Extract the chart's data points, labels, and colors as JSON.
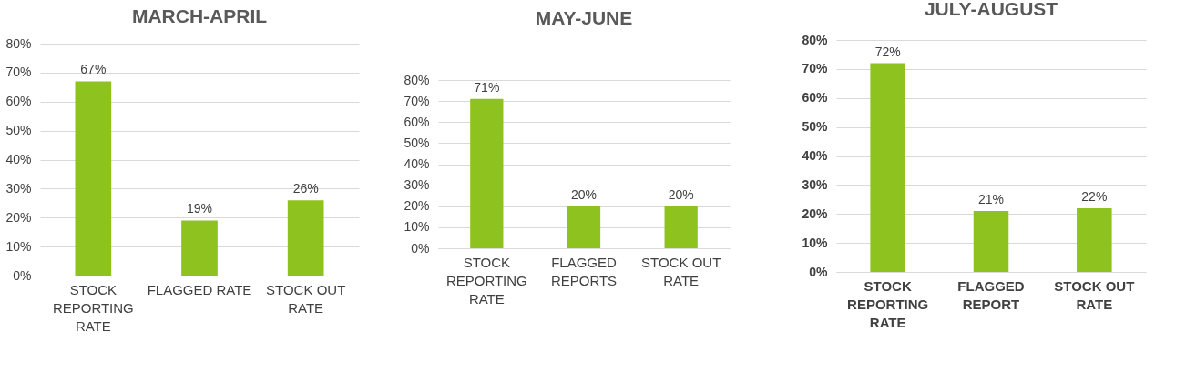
{
  "chart_data": [
    {
      "type": "bar",
      "title": "MARCH-APRIL",
      "categories": [
        "STOCK REPORTING RATE",
        "FLAGGED RATE",
        "STOCK OUT RATE"
      ],
      "values": [
        67,
        19,
        26
      ],
      "value_labels": [
        "67%",
        "19%",
        "26%"
      ],
      "color": "#8dc21f",
      "ylim": [
        0,
        80
      ],
      "yticks": [
        {
          "value": 0,
          "label": "0%"
        },
        {
          "value": 10,
          "label": "10%"
        },
        {
          "value": 20,
          "label": "20%"
        },
        {
          "value": 30,
          "label": "30%"
        },
        {
          "value": 40,
          "label": "40%"
        },
        {
          "value": 50,
          "label": "50%"
        },
        {
          "value": 60,
          "label": "60%"
        },
        {
          "value": 70,
          "label": "70%"
        },
        {
          "value": 80,
          "label": "80%"
        }
      ],
      "grid": "y"
    },
    {
      "type": "bar",
      "title": "MAY-JUNE",
      "categories": [
        "STOCK REPORTING RATE",
        "FLAGGED REPORTS",
        "STOCK OUT RATE"
      ],
      "values": [
        71,
        20,
        20
      ],
      "value_labels": [
        "71%",
        "20%",
        "20%"
      ],
      "color": "#8dc21f",
      "ylim": [
        0,
        80
      ],
      "yticks": [
        {
          "value": 0,
          "label": "0%"
        },
        {
          "value": 10,
          "label": "10%"
        },
        {
          "value": 20,
          "label": "20%"
        },
        {
          "value": 30,
          "label": "30%"
        },
        {
          "value": 40,
          "label": "40%"
        },
        {
          "value": 50,
          "label": "50%"
        },
        {
          "value": 60,
          "label": "60%"
        },
        {
          "value": 70,
          "label": "70%"
        },
        {
          "value": 80,
          "label": "80%"
        }
      ],
      "grid": "y"
    },
    {
      "type": "bar",
      "title": "JULY-AUGUST",
      "categories": [
        "STOCK REPORTING RATE",
        "FLAGGED REPORT",
        "STOCK OUT RATE"
      ],
      "values": [
        72,
        21,
        22
      ],
      "value_labels": [
        "72%",
        "21%",
        "22%"
      ],
      "color": "#8dc21f",
      "ylim": [
        0,
        80
      ],
      "yticks": [
        {
          "value": 0,
          "label": "0%"
        },
        {
          "value": 10,
          "label": "10%"
        },
        {
          "value": 20,
          "label": "20%"
        },
        {
          "value": 30,
          "label": "30%"
        },
        {
          "value": 40,
          "label": "40%"
        },
        {
          "value": 50,
          "label": "50%"
        },
        {
          "value": 60,
          "label": "60%"
        },
        {
          "value": 70,
          "label": "70%"
        },
        {
          "value": 80,
          "label": "80%"
        }
      ],
      "grid": "y"
    }
  ]
}
